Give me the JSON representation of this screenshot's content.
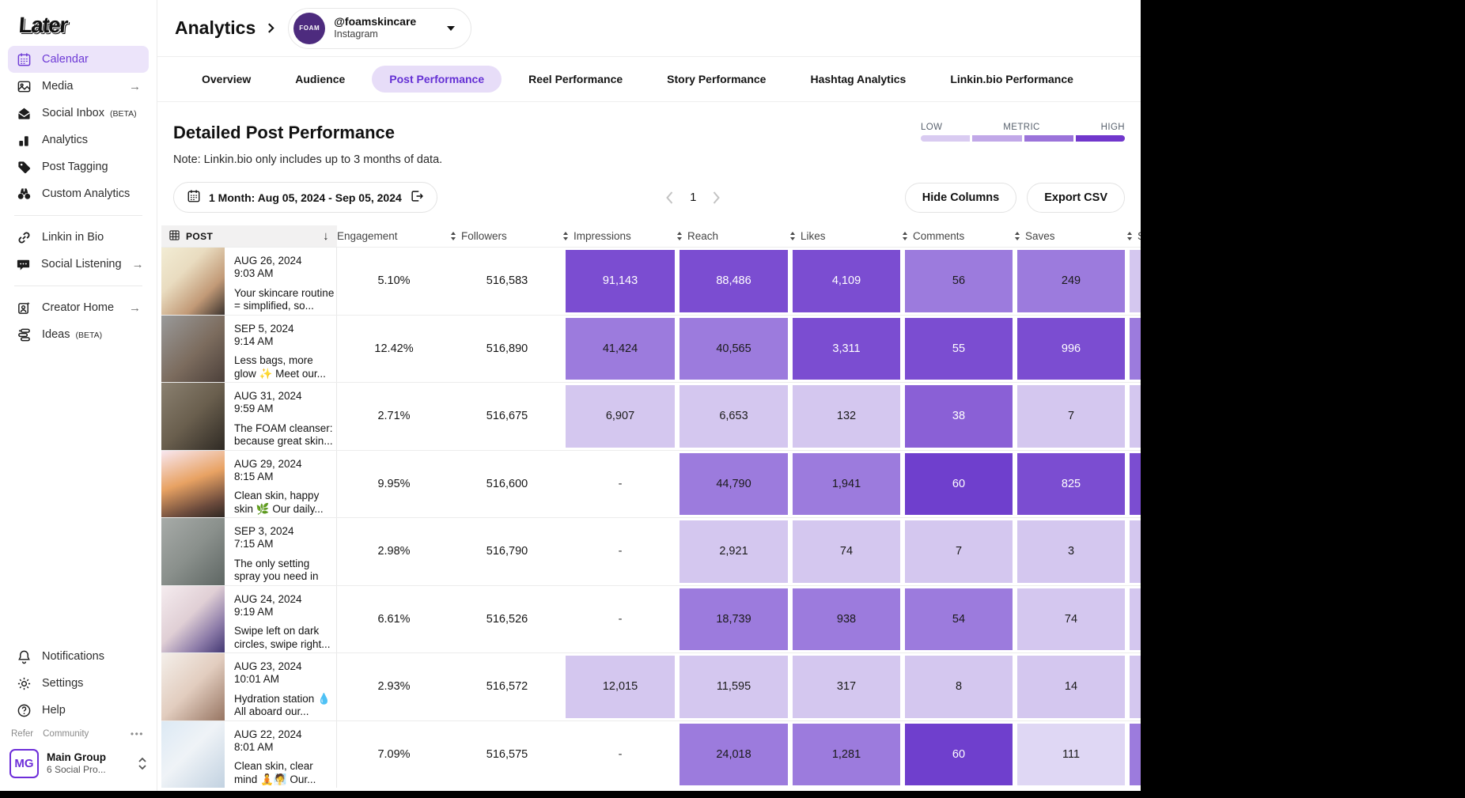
{
  "sidebar": {
    "logo_text": "Later",
    "items": [
      {
        "icon": "calendar-icon",
        "label": "Calendar",
        "active": true
      },
      {
        "icon": "media-icon",
        "label": "Media",
        "arrow": true
      },
      {
        "icon": "inbox-icon",
        "label": "Social Inbox",
        "badge": "(BETA)"
      },
      {
        "icon": "analytics-icon",
        "label": "Analytics"
      },
      {
        "icon": "tag-icon",
        "label": "Post Tagging"
      },
      {
        "icon": "binoculars-icon",
        "label": "Custom Analytics",
        "divider_after": true
      },
      {
        "icon": "link-icon",
        "label": "Linkin in Bio"
      },
      {
        "icon": "speech-icon",
        "label": "Social Listening",
        "arrow": true,
        "divider_after": true
      },
      {
        "icon": "creator-icon",
        "label": "Creator Home",
        "arrow": true
      },
      {
        "icon": "ideas-icon",
        "label": "Ideas",
        "badge": "(BETA)"
      }
    ],
    "footer_items": [
      {
        "icon": "bell-icon",
        "label": "Notifications"
      },
      {
        "icon": "gear-icon",
        "label": "Settings"
      },
      {
        "icon": "help-icon",
        "label": "Help"
      }
    ],
    "links": {
      "refer": "Refer",
      "community": "Community"
    },
    "workspace": {
      "initials": "MG",
      "name": "Main Group",
      "subtitle": "6 Social Pro..."
    }
  },
  "header": {
    "breadcrumb": "Analytics",
    "account": {
      "avatar_text": "FOAM",
      "handle": "@foamskincare",
      "platform": "Instagram"
    }
  },
  "tabs": [
    {
      "label": "Overview"
    },
    {
      "label": "Audience"
    },
    {
      "label": "Post Performance",
      "active": true
    },
    {
      "label": "Reel Performance"
    },
    {
      "label": "Story Performance"
    },
    {
      "label": "Hashtag Analytics"
    },
    {
      "label": "Linkin.bio Performance"
    }
  ],
  "page": {
    "title": "Detailed Post Performance",
    "note": "Note: Linkin.bio only includes up to 3 months of data.",
    "legend": {
      "low_label": "LOW",
      "metric_label": "METRIC",
      "high_label": "HIGH",
      "colors": [
        "#D9CBF1",
        "#C1A8E8",
        "#9B73DA",
        "#7137CC"
      ]
    },
    "date_range_label": "1 Month: Aug 05, 2024 - Sep 05, 2024",
    "pagination": {
      "current_page": "1"
    },
    "hide_columns_label": "Hide Columns",
    "export_csv_label": "Export CSV"
  },
  "table": {
    "columns": [
      "POST",
      "Engagement",
      "Followers",
      "Impressions",
      "Reach",
      "Likes",
      "Comments",
      "Saves",
      "Shares"
    ],
    "heatmap_palette": {
      "l1": "#DFD7F4",
      "l2": "#D4C7EF",
      "l3": "#9C7BDD",
      "l4": "#8A60D6",
      "l5": "#7B4DD1",
      "l6": "#6F3FCD"
    },
    "rows": [
      {
        "date": "AUG 26, 2024",
        "time": "9:03 AM",
        "caption": "Your skincare routine = simplified, so...",
        "engagement": "5.10%",
        "followers": "516,583",
        "metrics": [
          {
            "name": "impressions",
            "value": "91,143",
            "level": "l5"
          },
          {
            "name": "reach",
            "value": "88,486",
            "level": "l5"
          },
          {
            "name": "likes",
            "value": "4,109",
            "level": "l5"
          },
          {
            "name": "comments",
            "value": "56",
            "level": "l3"
          },
          {
            "name": "saves",
            "value": "249",
            "level": "l3"
          },
          {
            "name": "shares",
            "value": "",
            "level": "l2"
          }
        ]
      },
      {
        "date": "SEP 5, 2024",
        "time": "9:14 AM",
        "caption": "Less bags, more glow ✨ Meet our...",
        "engagement": "12.42%",
        "followers": "516,890",
        "metrics": [
          {
            "name": "impressions",
            "value": "41,424",
            "level": "l3"
          },
          {
            "name": "reach",
            "value": "40,565",
            "level": "l3"
          },
          {
            "name": "likes",
            "value": "3,311",
            "level": "l5"
          },
          {
            "name": "comments",
            "value": "55",
            "level": "l5"
          },
          {
            "name": "saves",
            "value": "996",
            "level": "l5"
          },
          {
            "name": "shares",
            "value": "",
            "level": "l3"
          }
        ]
      },
      {
        "date": "AUG 31, 2024",
        "time": "9:59 AM",
        "caption": "The FOAM cleanser: because great skin...",
        "engagement": "2.71%",
        "followers": "516,675",
        "metrics": [
          {
            "name": "impressions",
            "value": "6,907",
            "level": "l2"
          },
          {
            "name": "reach",
            "value": "6,653",
            "level": "l2"
          },
          {
            "name": "likes",
            "value": "132",
            "level": "l2"
          },
          {
            "name": "comments",
            "value": "38",
            "level": "l4"
          },
          {
            "name": "saves",
            "value": "7",
            "level": "l2"
          },
          {
            "name": "shares",
            "value": "",
            "level": "l2"
          }
        ]
      },
      {
        "date": "AUG 29, 2024",
        "time": "8:15 AM",
        "caption": "Clean skin, happy skin 🌿 Our daily...",
        "engagement": "9.95%",
        "followers": "516,600",
        "metrics": [
          {
            "name": "impressions",
            "value": "-",
            "level": null
          },
          {
            "name": "reach",
            "value": "44,790",
            "level": "l3"
          },
          {
            "name": "likes",
            "value": "1,941",
            "level": "l3"
          },
          {
            "name": "comments",
            "value": "60",
            "level": "l6"
          },
          {
            "name": "saves",
            "value": "825",
            "level": "l5"
          },
          {
            "name": "shares",
            "value": "",
            "level": "l5"
          }
        ]
      },
      {
        "date": "SEP 3, 2024",
        "time": "7:15 AM",
        "caption": "The only setting spray you need in y...",
        "engagement": "2.98%",
        "followers": "516,790",
        "metrics": [
          {
            "name": "impressions",
            "value": "-",
            "level": null
          },
          {
            "name": "reach",
            "value": "2,921",
            "level": "l2"
          },
          {
            "name": "likes",
            "value": "74",
            "level": "l2"
          },
          {
            "name": "comments",
            "value": "7",
            "level": "l2"
          },
          {
            "name": "saves",
            "value": "3",
            "level": "l2"
          },
          {
            "name": "shares",
            "value": "",
            "level": "l2"
          }
        ]
      },
      {
        "date": "AUG 24, 2024",
        "time": "9:19 AM",
        "caption": "Swipe left on dark circles, swipe right...",
        "engagement": "6.61%",
        "followers": "516,526",
        "metrics": [
          {
            "name": "impressions",
            "value": "-",
            "level": null
          },
          {
            "name": "reach",
            "value": "18,739",
            "level": "l3"
          },
          {
            "name": "likes",
            "value": "938",
            "level": "l3"
          },
          {
            "name": "comments",
            "value": "54",
            "level": "l3"
          },
          {
            "name": "saves",
            "value": "74",
            "level": "l2"
          },
          {
            "name": "shares",
            "value": "",
            "level": "l2"
          }
        ]
      },
      {
        "date": "AUG 23, 2024",
        "time": "10:01 AM",
        "caption": "Hydration station 💧 All aboard our...",
        "engagement": "2.93%",
        "followers": "516,572",
        "metrics": [
          {
            "name": "impressions",
            "value": "12,015",
            "level": "l2"
          },
          {
            "name": "reach",
            "value": "11,595",
            "level": "l2"
          },
          {
            "name": "likes",
            "value": "317",
            "level": "l2"
          },
          {
            "name": "comments",
            "value": "8",
            "level": "l2"
          },
          {
            "name": "saves",
            "value": "14",
            "level": "l2"
          },
          {
            "name": "shares",
            "value": "",
            "level": "l2"
          }
        ]
      },
      {
        "date": "AUG 22, 2024",
        "time": "8:01 AM",
        "caption": "Clean skin, clear mind 🧘🧖 Our...",
        "engagement": "7.09%",
        "followers": "516,575",
        "metrics": [
          {
            "name": "impressions",
            "value": "-",
            "level": null
          },
          {
            "name": "reach",
            "value": "24,018",
            "level": "l3"
          },
          {
            "name": "likes",
            "value": "1,281",
            "level": "l3"
          },
          {
            "name": "comments",
            "value": "60",
            "level": "l6"
          },
          {
            "name": "saves",
            "value": "111",
            "level": "l1"
          },
          {
            "name": "shares",
            "value": "",
            "level": "l3"
          }
        ]
      }
    ]
  }
}
